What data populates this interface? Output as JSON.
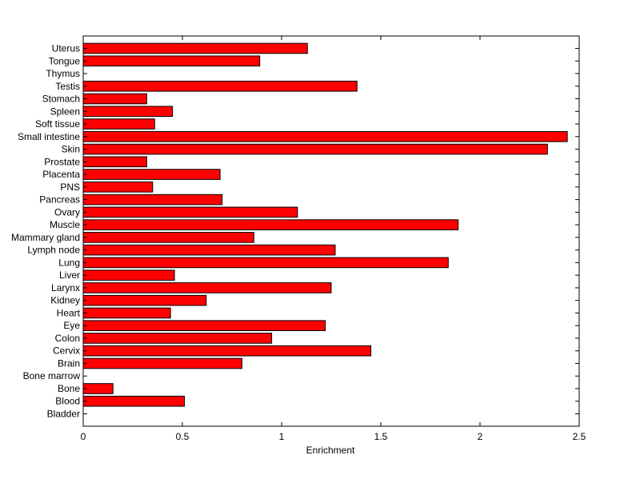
{
  "chart_data": {
    "type": "bar",
    "orientation": "horizontal",
    "xlabel": "Enrichment",
    "ylabel": "",
    "xlim": [
      0,
      2.5
    ],
    "xticks": [
      0,
      0.5,
      1,
      1.5,
      2,
      2.5
    ],
    "xtick_labels": [
      "0",
      "0.5",
      "1",
      "1.5",
      "2",
      "2.5"
    ],
    "grid": false,
    "bar_color": "#ff0000",
    "bar_edge_color": "#000000",
    "categories": [
      "Bladder",
      "Blood",
      "Bone",
      "Bone marrow",
      "Brain",
      "Cervix",
      "Colon",
      "Eye",
      "Heart",
      "Kidney",
      "Larynx",
      "Liver",
      "Lung",
      "Lymph node",
      "Mammary gland",
      "Muscle",
      "Ovary",
      "Pancreas",
      "PNS",
      "Placenta",
      "Prostate",
      "Skin",
      "Small intestine",
      "Soft tissue",
      "Spleen",
      "Stomach",
      "Testis",
      "Thymus",
      "Tongue",
      "Uterus"
    ],
    "values": [
      0,
      0.51,
      0.15,
      0,
      0.8,
      1.45,
      0.95,
      1.22,
      0.44,
      0.62,
      1.25,
      0.46,
      1.84,
      1.27,
      0.86,
      1.89,
      1.08,
      0.7,
      0.35,
      0.69,
      0.32,
      2.34,
      2.44,
      0.36,
      0.45,
      0.32,
      1.38,
      0,
      0.89,
      1.13
    ]
  }
}
